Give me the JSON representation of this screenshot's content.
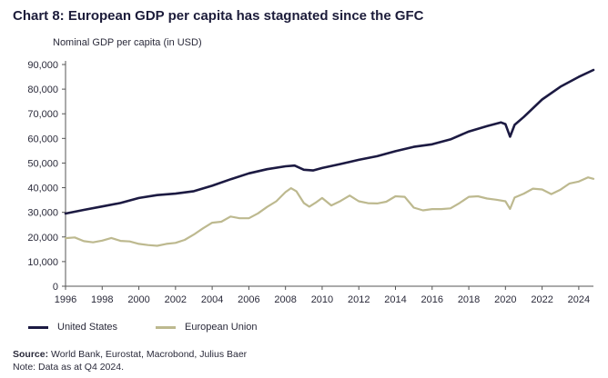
{
  "title": "Chart 8: European GDP per capita has stagnated since the GFC",
  "legend": {
    "us": "United States",
    "eu": "European Union"
  },
  "footer": {
    "source_label": "Source:",
    "source_text": " World Bank, Eurostat, Macrobond, Julius Baer",
    "note": "Note: Data as at Q4 2024."
  },
  "colors": {
    "us": "#1c1a42",
    "eu": "#bdb98f",
    "axis": "#555555",
    "text": "#2a2a3a"
  },
  "chart_data": {
    "type": "line",
    "title": "Chart 8: European GDP per capita has stagnated since the GFC",
    "ylabel": "Nominal GDP per capita (in USD)",
    "xlabel": "",
    "xlim": [
      1996,
      2024.8
    ],
    "ylim": [
      0,
      90000
    ],
    "x_ticks": [
      1996,
      1998,
      2000,
      2002,
      2004,
      2006,
      2008,
      2010,
      2012,
      2014,
      2016,
      2018,
      2020,
      2022,
      2024
    ],
    "y_ticks": [
      0,
      10000,
      20000,
      30000,
      40000,
      50000,
      60000,
      70000,
      80000,
      90000
    ],
    "y_tick_labels": [
      "0",
      "10,000",
      "20,000",
      "30,000",
      "40,000",
      "50,000",
      "60,000",
      "70,000",
      "80,000",
      "90,000"
    ],
    "grid": false,
    "legend_position": "bottom-left",
    "series": [
      {
        "name": "United States",
        "color": "#1c1a42",
        "points": [
          [
            1996.0,
            29500
          ],
          [
            1997.0,
            31000
          ],
          [
            1998.0,
            32400
          ],
          [
            1999.0,
            33800
          ],
          [
            2000.0,
            35800
          ],
          [
            2001.0,
            37000
          ],
          [
            2002.0,
            37600
          ],
          [
            2003.0,
            38600
          ],
          [
            2004.0,
            40800
          ],
          [
            2005.0,
            43400
          ],
          [
            2006.0,
            45800
          ],
          [
            2007.0,
            47500
          ],
          [
            2008.0,
            48700
          ],
          [
            2008.5,
            49000
          ],
          [
            2009.0,
            47300
          ],
          [
            2009.5,
            47000
          ],
          [
            2010.0,
            48000
          ],
          [
            2011.0,
            49600
          ],
          [
            2012.0,
            51300
          ],
          [
            2013.0,
            52800
          ],
          [
            2014.0,
            54800
          ],
          [
            2015.0,
            56600
          ],
          [
            2016.0,
            57600
          ],
          [
            2017.0,
            59600
          ],
          [
            2018.0,
            62800
          ],
          [
            2019.0,
            65000
          ],
          [
            2019.75,
            66500
          ],
          [
            2020.0,
            65800
          ],
          [
            2020.25,
            60700
          ],
          [
            2020.5,
            65500
          ],
          [
            2021.0,
            68700
          ],
          [
            2022.0,
            75800
          ],
          [
            2023.0,
            81000
          ],
          [
            2024.0,
            85000
          ],
          [
            2024.8,
            87800
          ]
        ]
      },
      {
        "name": "European Union",
        "color": "#bdb98f",
        "points": [
          [
            1996.0,
            19500
          ],
          [
            1996.5,
            19800
          ],
          [
            1997.0,
            18300
          ],
          [
            1997.5,
            17800
          ],
          [
            1998.0,
            18500
          ],
          [
            1998.5,
            19600
          ],
          [
            1999.0,
            18400
          ],
          [
            1999.5,
            18200
          ],
          [
            2000.0,
            17200
          ],
          [
            2000.5,
            16700
          ],
          [
            2001.0,
            16400
          ],
          [
            2001.5,
            17200
          ],
          [
            2002.0,
            17600
          ],
          [
            2002.5,
            18800
          ],
          [
            2003.0,
            21000
          ],
          [
            2003.5,
            23500
          ],
          [
            2004.0,
            25800
          ],
          [
            2004.5,
            26200
          ],
          [
            2005.0,
            28300
          ],
          [
            2005.5,
            27600
          ],
          [
            2006.0,
            27600
          ],
          [
            2006.5,
            29600
          ],
          [
            2007.0,
            32200
          ],
          [
            2007.5,
            34500
          ],
          [
            2008.0,
            38200
          ],
          [
            2008.3,
            39800
          ],
          [
            2008.6,
            38500
          ],
          [
            2009.0,
            33800
          ],
          [
            2009.3,
            32300
          ],
          [
            2009.7,
            34200
          ],
          [
            2010.0,
            35800
          ],
          [
            2010.5,
            32800
          ],
          [
            2011.0,
            34600
          ],
          [
            2011.5,
            36800
          ],
          [
            2012.0,
            34500
          ],
          [
            2012.5,
            33700
          ],
          [
            2013.0,
            33600
          ],
          [
            2013.5,
            34300
          ],
          [
            2014.0,
            36500
          ],
          [
            2014.5,
            36300
          ],
          [
            2015.0,
            31900
          ],
          [
            2015.5,
            30800
          ],
          [
            2016.0,
            31300
          ],
          [
            2016.5,
            31300
          ],
          [
            2017.0,
            31600
          ],
          [
            2017.5,
            33800
          ],
          [
            2018.0,
            36300
          ],
          [
            2018.5,
            36500
          ],
          [
            2019.0,
            35600
          ],
          [
            2019.5,
            35100
          ],
          [
            2020.0,
            34500
          ],
          [
            2020.25,
            31400
          ],
          [
            2020.5,
            36000
          ],
          [
            2021.0,
            37600
          ],
          [
            2021.5,
            39600
          ],
          [
            2022.0,
            39300
          ],
          [
            2022.5,
            37400
          ],
          [
            2023.0,
            39200
          ],
          [
            2023.5,
            41700
          ],
          [
            2024.0,
            42500
          ],
          [
            2024.5,
            44200
          ],
          [
            2024.8,
            43600
          ]
        ]
      }
    ]
  }
}
